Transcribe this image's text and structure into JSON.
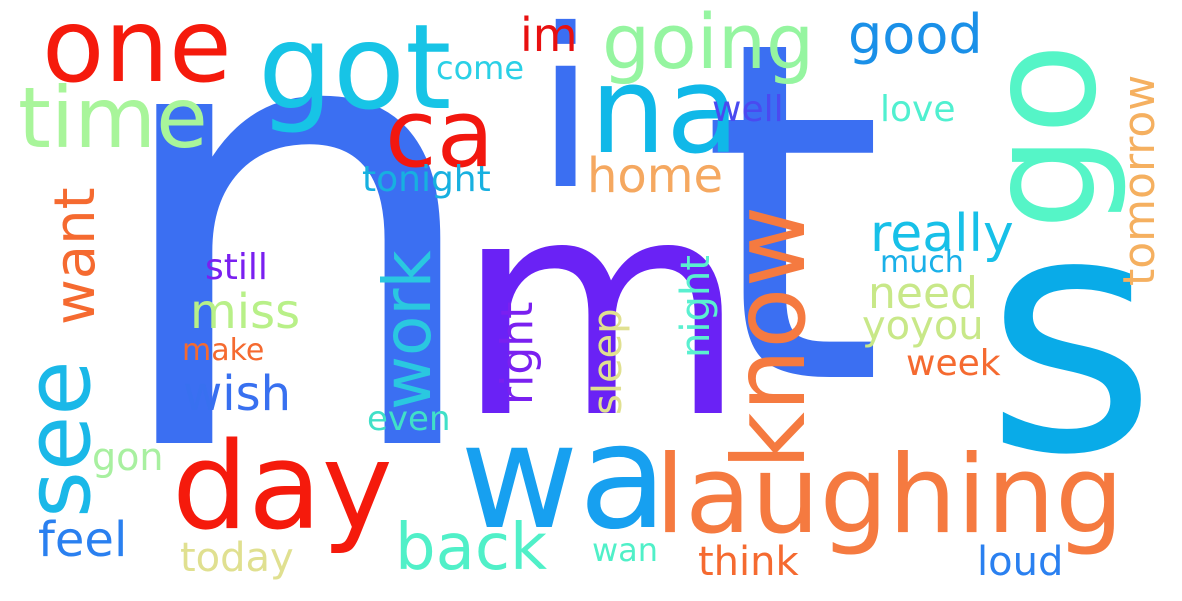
{
  "words": [
    {
      "text": "n",
      "color": "#3b6ff2"
    },
    {
      "text": "m",
      "color": "#6a22f5"
    },
    {
      "text": "t",
      "color": "#3b6ff2"
    },
    {
      "text": "s",
      "color": "#09abe8"
    },
    {
      "text": "i",
      "color": "#3b6ff2"
    },
    {
      "text": "go",
      "color": "#55f5c7"
    },
    {
      "text": "one",
      "color": "#f51a0c"
    },
    {
      "text": "got",
      "color": "#17c4e6"
    },
    {
      "text": "going",
      "color": "#95f5a0"
    },
    {
      "text": "good",
      "color": "#1a90e8"
    },
    {
      "text": "im",
      "color": "#e81010"
    },
    {
      "text": "come",
      "color": "#2ad0e6"
    },
    {
      "text": "time",
      "color": "#a8f59a"
    },
    {
      "text": "na",
      "color": "#10b8e8"
    },
    {
      "text": "ca",
      "color": "#f2170f"
    },
    {
      "text": "well",
      "color": "#4a4af0"
    },
    {
      "text": "love",
      "color": "#50f0d0"
    },
    {
      "text": "tomorrow",
      "color": "#f5b060"
    },
    {
      "text": "home",
      "color": "#f5a860"
    },
    {
      "text": "tonight",
      "color": "#17b0e0"
    },
    {
      "text": "want",
      "color": "#f56a30"
    },
    {
      "text": "see",
      "color": "#1ab8e8"
    },
    {
      "text": "work",
      "color": "#2ac8e0"
    },
    {
      "text": "know",
      "color": "#f57a40"
    },
    {
      "text": "really",
      "color": "#17c0e8"
    },
    {
      "text": "still",
      "color": "#7a20f0"
    },
    {
      "text": "night",
      "color": "#5af0d0"
    },
    {
      "text": "much",
      "color": "#1ab0e8"
    },
    {
      "text": "miss",
      "color": "#b8f088"
    },
    {
      "text": "need",
      "color": "#c8e888"
    },
    {
      "text": "yoyou",
      "color": "#c8e888"
    },
    {
      "text": "make",
      "color": "#f56a30"
    },
    {
      "text": "right",
      "color": "#7a20f0"
    },
    {
      "text": "sleep",
      "color": "#e0e090"
    },
    {
      "text": "week",
      "color": "#f56a30"
    },
    {
      "text": "wish",
      "color": "#3870f0"
    },
    {
      "text": "even",
      "color": "#40e0c8"
    },
    {
      "text": "day",
      "color": "#f51a0c"
    },
    {
      "text": "wa",
      "color": "#17a0f0"
    },
    {
      "text": "laughing",
      "color": "#f57a40"
    },
    {
      "text": "gon",
      "color": "#a8f0a0"
    },
    {
      "text": "feel",
      "color": "#2a80f0"
    },
    {
      "text": "back",
      "color": "#50f0c8"
    },
    {
      "text": "today",
      "color": "#e0e090"
    },
    {
      "text": "wan",
      "color": "#50f0c8"
    },
    {
      "text": "think",
      "color": "#f56a30"
    },
    {
      "text": "loud",
      "color": "#2a80f0"
    }
  ]
}
